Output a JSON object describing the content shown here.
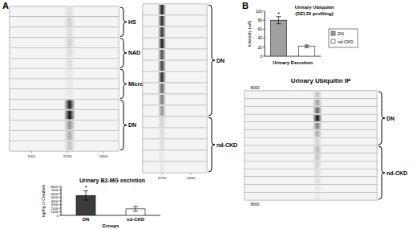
{
  "panels": [
    "A",
    "B"
  ],
  "gels": [
    {
      "axis_labels": [
        "5000",
        "11700",
        "13000"
      ],
      "groups": [
        {
          "label": "HS",
          "lanes": [
            0.1,
            0.15,
            0.1
          ]
        },
        {
          "label": "NAD",
          "lanes": [
            0.15,
            0.1,
            0.1
          ]
        },
        {
          "label": "Micro",
          "lanes": [
            0.05,
            0.05,
            0.05
          ]
        },
        {
          "label": "DN",
          "lanes": [
            0.9,
            0.95,
            0.4,
            0.3,
            0.2
          ]
        }
      ]
    },
    {
      "axis_labels": [
        "11700",
        "13000"
      ],
      "groups": [
        {
          "label": "DN",
          "lanes": [
            0.9,
            0.85,
            0.8,
            0.9,
            0.7,
            0.75,
            0.85,
            0.6,
            0.5,
            0.4
          ]
        },
        {
          "label": "nd-CKD",
          "lanes": [
            0.15,
            0.1,
            0.1,
            0.05,
            0.05
          ]
        }
      ]
    },
    {
      "title": "Urinary Ubiquitin IP",
      "marker_label": "8000",
      "groups": [
        {
          "label": "DN",
          "lanes": [
            0.2,
            0.35,
            0.6,
            0.95,
            0.5,
            0.3,
            0.15
          ]
        },
        {
          "label": "nd-CKD",
          "lanes": [
            0.25,
            0.2,
            0.15,
            0.1,
            0.1,
            0.05,
            0.05
          ]
        }
      ]
    }
  ],
  "chart_data": [
    {
      "type": "bar",
      "title": "Urinary B2-MG excretion",
      "categories": [
        "DN",
        "nd-CKD"
      ],
      "values": [
        5500,
        1800
      ],
      "errors": [
        1300,
        650
      ],
      "colors": [
        "#3c3c3c",
        "#ffffff"
      ],
      "ylim": [
        0,
        8000
      ],
      "yticks": [
        0,
        1000,
        2000,
        3000,
        4000,
        5000,
        6000,
        7000,
        8000
      ],
      "y_label": "ng/mg U-Creatinin",
      "x_label": "Groups",
      "annotations": [
        "*"
      ]
    },
    {
      "type": "bar",
      "title": "Urinary Ubiquitin",
      "subtitle": "(SELDI profiling)",
      "categories": [
        "DN",
        "nd-CKD"
      ],
      "values": [
        80,
        22
      ],
      "errors": [
        8,
        3
      ],
      "colors": [
        "#a0a0a0",
        "#ffffff"
      ],
      "ylim": [
        0,
        100
      ],
      "yticks": [
        0,
        20,
        40,
        60,
        80,
        100
      ],
      "y_label": "Intensity (uA)",
      "x_label": "Urinary Excretion",
      "legend": "right",
      "tick_labels": "y",
      "annotations": [
        "*"
      ]
    }
  ]
}
